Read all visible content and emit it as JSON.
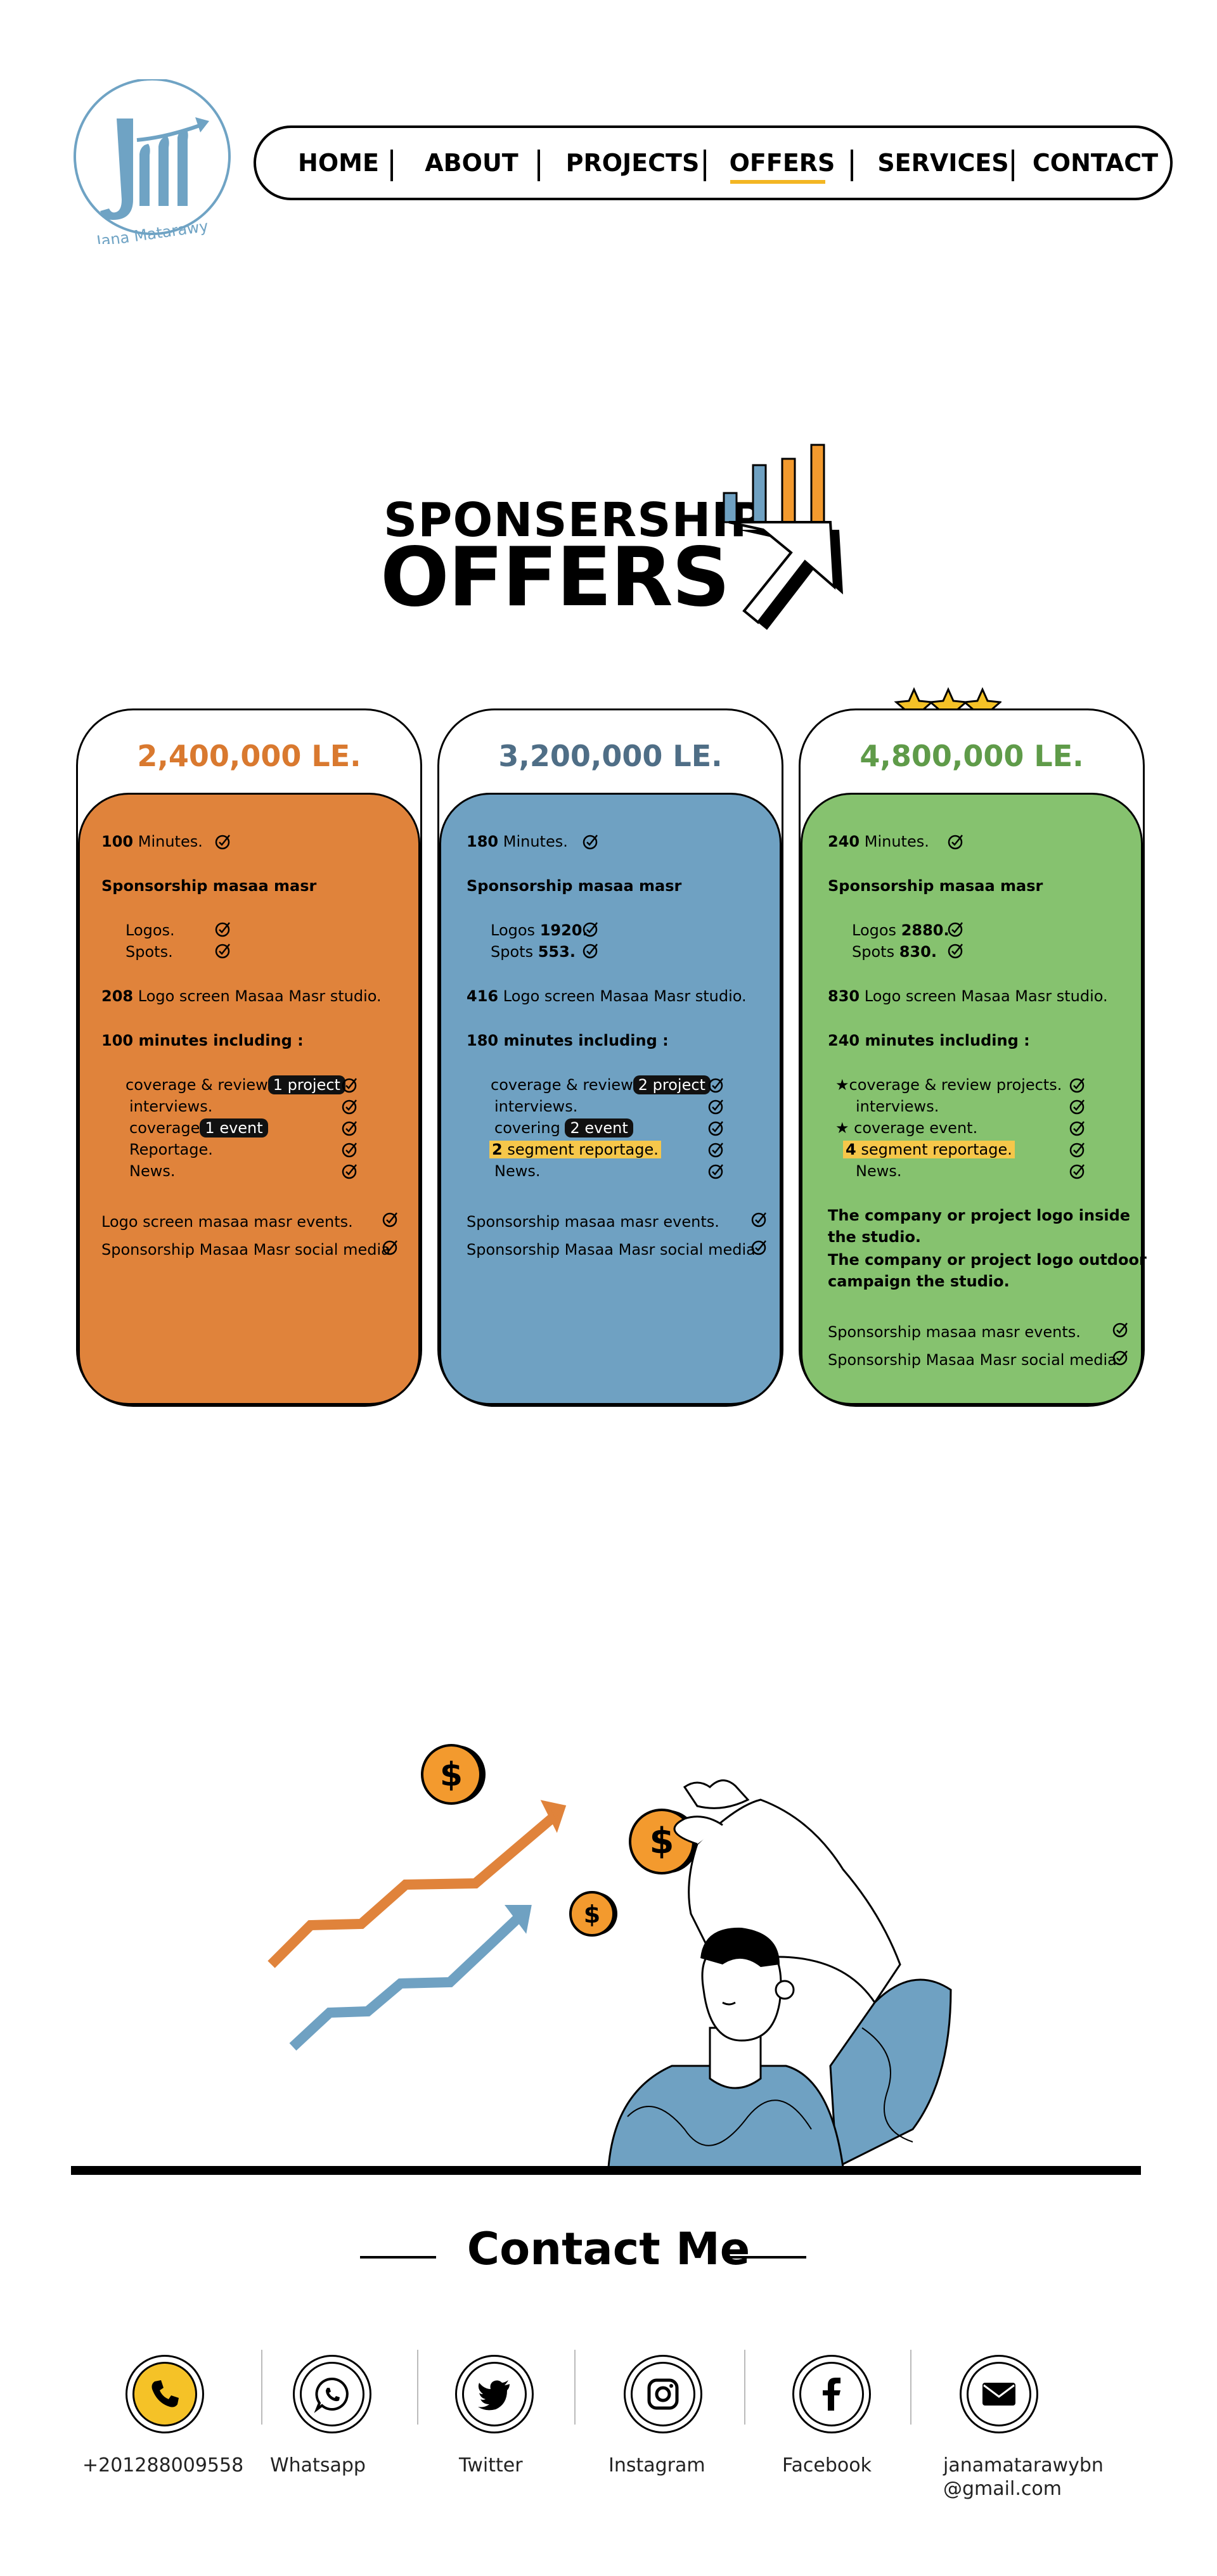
{
  "brand": {
    "logo_text": "Jana Matarawy",
    "color": "#6fa3c4"
  },
  "nav": {
    "items": [
      "HOME",
      "ABOUT",
      "PROJECTS",
      "OFFERS",
      "SERVICES",
      "CONTACT"
    ],
    "active": "OFFERS",
    "accent": "#f3b623"
  },
  "title": {
    "line1": "SPONSERSHIP",
    "line2": "OFFERS"
  },
  "colors": {
    "orange": "#e0833b",
    "blue": "#6fa1c2",
    "green": "#86c26f",
    "price_orange": "#d9792f",
    "price_blue": "#4f6e86",
    "price_green": "#5f9b49",
    "star": "#f5c227"
  },
  "cards": [
    {
      "price": "2,400,000 LE.",
      "minutes_num": "100",
      "minutes_label": "Minutes.",
      "sponsorship": "Sponsorship masaa masr",
      "logos": "Logos.",
      "spots": "Spots.",
      "logo_screen_num": "208",
      "logo_screen_text": "Logo screen Masaa Masr studio.",
      "including": "100 minutes including :",
      "cov_review": "coverage & review",
      "cov_review_pill": "1 project",
      "interviews": "interviews.",
      "coverage": "coverage",
      "coverage_pill": "1 event",
      "reportage": "Reportage.",
      "news": "News.",
      "events": "Logo screen masaa masr events.",
      "social": "Sponsorship Masaa Masr social media"
    },
    {
      "price": "3,200,000 LE.",
      "minutes_num": "180",
      "minutes_label": "Minutes.",
      "sponsorship": "Sponsorship masaa masr",
      "logos_label": "Logos",
      "logos_num": "1920.",
      "spots_label": "Spots",
      "spots_num": "553.",
      "logo_screen_num": "416",
      "logo_screen_text": "Logo screen Masaa Masr studio.",
      "including": "180 minutes including :",
      "cov_review": "coverage & review",
      "cov_review_pill": "2 project",
      "interviews": "interviews.",
      "covering": "covering",
      "covering_pill": "2 event",
      "segment_num": "2",
      "segment_text": "segment reportage.",
      "news": "News.",
      "events": "Sponsorship masaa masr events.",
      "social": "Sponsorship Masaa Masr social media"
    },
    {
      "price": "4,800,000 LE.",
      "stars": 3,
      "minutes_num": "240",
      "minutes_label": "Minutes.",
      "sponsorship": "Sponsorship masaa masr",
      "logos_label": "Logos",
      "logos_num": "2880.",
      "spots_label": "Spots",
      "spots_num": "830.",
      "logo_screen_num": "830",
      "logo_screen_text": "Logo screen Masaa Masr studio.",
      "including": "240 minutes including :",
      "cov_review": "coverage & review  projects.",
      "interviews": "interviews.",
      "coverage": "coverage  event.",
      "segment_num": "4",
      "segment_text": "segment reportage.",
      "news": "News.",
      "bold1": "The company or project logo inside",
      "bold2": "the studio.",
      "bold3": "The company or project logo outdoor",
      "bold4": "campaign the studio.",
      "events": "Sponsorship masaa masr events.",
      "social": "Sponsorship Masaa Masr social media"
    }
  ],
  "contact": {
    "title": "Contact Me",
    "items": [
      {
        "icon": "phone-icon",
        "label": "+201288009558"
      },
      {
        "icon": "whatsapp-icon",
        "label": "Whatsapp"
      },
      {
        "icon": "twitter-icon",
        "label": "Twitter"
      },
      {
        "icon": "instagram-icon",
        "label": "Instagram"
      },
      {
        "icon": "facebook-icon",
        "label": "Facebook"
      },
      {
        "icon": "email-icon",
        "label1": "janamatarawybn",
        "label2": "@gmail.com"
      }
    ]
  }
}
